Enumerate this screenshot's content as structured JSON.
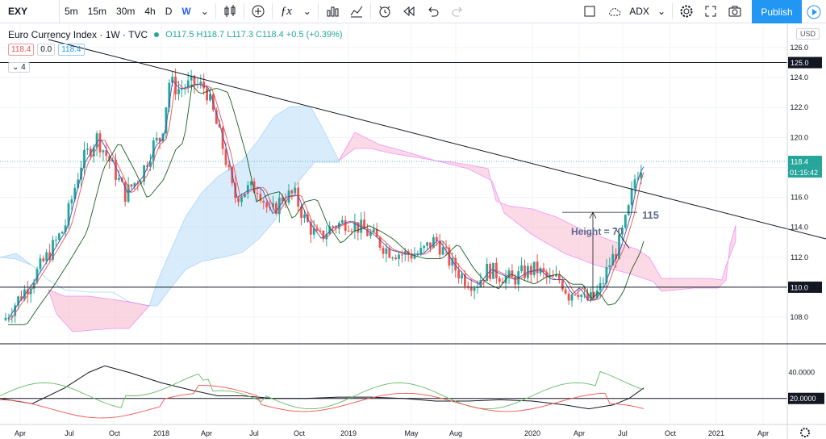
{
  "toolbar": {
    "symbol": "EXY",
    "intervals": [
      "5m",
      "15m",
      "30m",
      "4h",
      "D",
      "W"
    ],
    "active_interval": "W",
    "indicator_label": "ADX",
    "publish_label": "Publish"
  },
  "legend": {
    "name": "Euro Currency Index · 1W · TVC",
    "ohlc": "O117.5 H118.7 L117.3 C118.4 +0.5 (+0.39%)",
    "chips": [
      "118.4",
      "0.0",
      "118.4"
    ],
    "collapsed": "4"
  },
  "price_axis": {
    "currency": "USD",
    "ticks": [
      "126.0",
      "124.0",
      "122.0",
      "120.0",
      "118.0",
      "116.0",
      "114.0",
      "112.0",
      "110.0",
      "108.0"
    ],
    "labels": {
      "level_125": "125.0",
      "last": "118.4",
      "countdown": "01:15:42",
      "level_110": "110.0"
    }
  },
  "adx_axis": {
    "ticks": [
      "40.0000",
      "20.0000"
    ]
  },
  "time_axis": [
    "Apr",
    "Jul",
    "Oct",
    "2018",
    "Apr",
    "Jul",
    "Oct",
    "2019",
    "May",
    "Aug",
    "2020",
    "Apr",
    "Jul",
    "Oct",
    "2021",
    "Apr"
  ],
  "annotations": {
    "target": "115",
    "height": "Height = 70"
  },
  "colors": {
    "up": "#26a69a",
    "down": "#ef5350",
    "accent": "#2196f3",
    "cloud_bull": "#bbdefb",
    "cloud_bear": "#f8bbd0"
  }
}
